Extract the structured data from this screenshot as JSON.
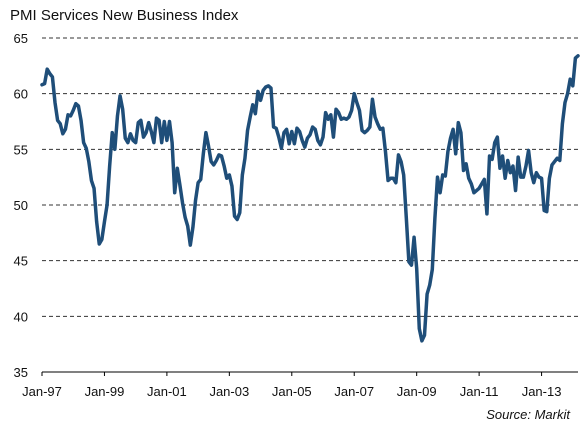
{
  "chart_data": {
    "type": "line",
    "title": "PMI Services New Business Index",
    "source": "Source: Markit",
    "xlabel": "",
    "ylabel": "",
    "ylim": [
      35,
      65
    ],
    "yticks": [
      35,
      40,
      45,
      50,
      55,
      60,
      65
    ],
    "x_start": "1997-01",
    "x_step": "month",
    "xtick_labels": [
      "Jan-97",
      "Jan-99",
      "Jan-01",
      "Jan-03",
      "Jan-05",
      "Jan-07",
      "Jan-09",
      "Jan-11",
      "Jan-13"
    ],
    "grid": "horizontal-dashed",
    "legend": "none",
    "line_color": "#1f4e79",
    "series": [
      {
        "values": [
          60.8,
          60.9,
          62.2,
          61.8,
          61.5,
          59.2,
          57.6,
          57.3,
          56.4,
          56.8,
          58.1,
          58.0,
          58.5,
          59.1,
          58.9,
          57.6,
          55.6,
          55.1,
          53.9,
          52.2,
          51.5,
          48.5,
          46.5,
          46.9,
          48.5,
          50.0,
          53.5,
          56.5,
          55.0,
          58.0,
          59.8,
          58.6,
          56.0,
          55.6,
          56.4,
          55.8,
          55.6,
          57.4,
          57.6,
          56.1,
          56.5,
          57.4,
          56.6,
          55.6,
          57.8,
          57.6,
          55.6,
          57.5,
          55.8,
          57.5,
          55.6,
          51.1,
          53.3,
          51.8,
          50.2,
          48.9,
          48.1,
          46.4,
          48.0,
          50.4,
          52.0,
          52.3,
          54.6,
          56.5,
          55.3,
          53.9,
          53.6,
          54.0,
          54.5,
          54.4,
          53.5,
          52.4,
          52.7,
          51.7,
          49.0,
          48.7,
          49.3,
          52.7,
          54.2,
          56.7,
          57.9,
          59.0,
          58.2,
          60.2,
          59.4,
          60.3,
          60.6,
          60.7,
          60.5,
          57.0,
          56.9,
          56.1,
          55.1,
          56.5,
          56.8,
          55.5,
          56.6,
          55.5,
          56.9,
          56.6,
          55.8,
          55.2,
          56.0,
          56.3,
          57.0,
          56.8,
          55.8,
          55.4,
          56.1,
          58.3,
          57.7,
          58.1,
          56.1,
          58.6,
          58.3,
          57.7,
          57.8,
          57.7,
          57.9,
          58.5,
          60.0,
          59.2,
          58.5,
          56.7,
          56.5,
          56.7,
          57.0,
          59.5,
          57.9,
          57.3,
          56.8,
          56.9,
          54.8,
          52.2,
          52.4,
          52.4,
          52.0,
          54.5,
          53.9,
          52.7,
          48.9,
          44.9,
          44.6,
          47.1,
          44.3,
          38.9,
          37.8,
          38.3,
          42.0,
          42.8,
          44.2,
          48.8,
          52.5,
          51.1,
          52.7,
          52.6,
          54.8,
          56.0,
          56.8,
          54.6,
          57.4,
          56.5,
          53.1,
          53.7,
          52.4,
          51.9,
          51.1,
          51.3,
          51.5,
          51.9,
          52.3,
          49.2,
          54.4,
          54.1,
          55.6,
          56.1,
          53.3,
          54.4,
          52.4,
          54.0,
          52.9,
          53.5,
          51.3,
          54.3,
          52.5,
          52.5,
          53.5,
          54.9,
          52.9,
          52.0,
          52.9,
          52.5,
          52.4,
          49.5,
          49.4,
          52.4,
          53.6,
          53.9,
          54.2,
          54.0,
          57.3,
          59.2,
          60.0,
          61.3,
          60.7,
          63.2,
          63.4
        ]
      }
    ]
  }
}
